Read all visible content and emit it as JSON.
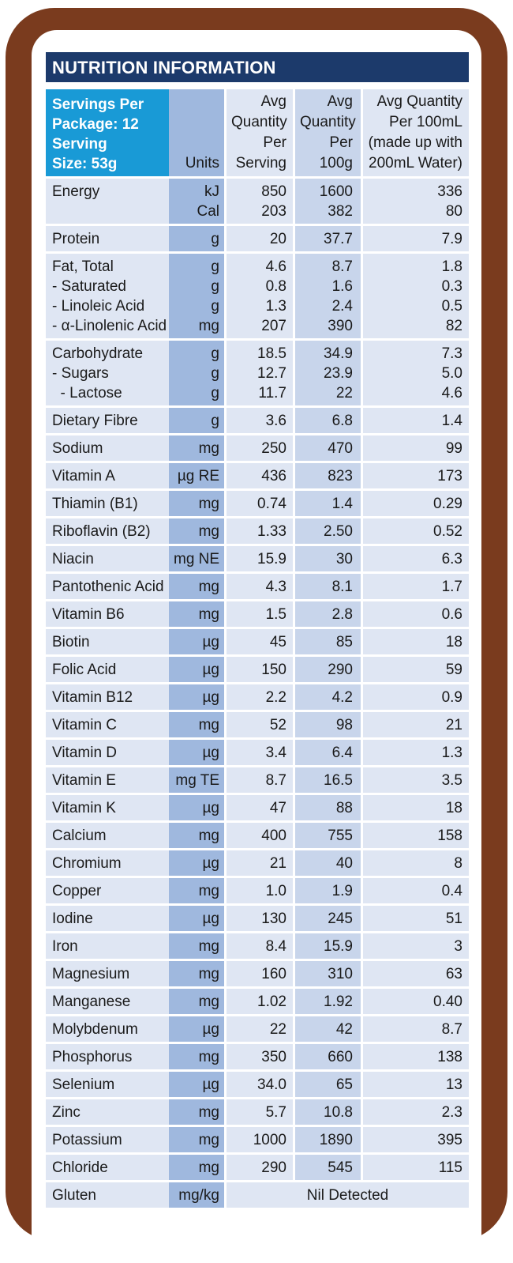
{
  "title": "NUTRITION INFORMATION",
  "header": {
    "servings_line1": "Servings Per",
    "servings_line2": "Package: 12",
    "serving_line1": "Serving",
    "serving_line2": "Size: 53g",
    "units": "Units",
    "per_serving": [
      "Avg",
      "Quantity",
      "Per",
      "Serving"
    ],
    "per_100g": [
      "Avg",
      "Quantity",
      "Per",
      "100g"
    ],
    "per_100ml": [
      "Avg Quantity",
      "Per 100mL",
      "(made up with",
      "200mL Water)"
    ]
  },
  "rows": [
    {
      "names": [
        "Energy",
        ""
      ],
      "units": [
        "kJ",
        "Cal"
      ],
      "ps": [
        "850",
        "203"
      ],
      "p100": [
        "1600",
        "382"
      ],
      "pml": [
        "336",
        "80"
      ]
    },
    {
      "names": [
        "Protein"
      ],
      "units": [
        "g"
      ],
      "ps": [
        "20"
      ],
      "p100": [
        "37.7"
      ],
      "pml": [
        "7.9"
      ]
    },
    {
      "names": [
        "Fat, Total",
        "- Saturated",
        "- Linoleic Acid",
        "- α-Linolenic Acid"
      ],
      "units": [
        "g",
        "g",
        "g",
        "mg"
      ],
      "ps": [
        "4.6",
        "0.8",
        "1.3",
        "207"
      ],
      "p100": [
        "8.7",
        "1.6",
        "2.4",
        "390"
      ],
      "pml": [
        "1.8",
        "0.3",
        "0.5",
        "82"
      ]
    },
    {
      "names": [
        "Carbohydrate",
        "- Sugars",
        "  - Lactose"
      ],
      "units": [
        "g",
        "g",
        "g"
      ],
      "ps": [
        "18.5",
        "12.7",
        "11.7"
      ],
      "p100": [
        "34.9",
        "23.9",
        "22"
      ],
      "pml": [
        "7.3",
        "5.0",
        "4.6"
      ]
    },
    {
      "names": [
        "Dietary Fibre"
      ],
      "units": [
        "g"
      ],
      "ps": [
        "3.6"
      ],
      "p100": [
        "6.8"
      ],
      "pml": [
        "1.4"
      ]
    },
    {
      "names": [
        "Sodium"
      ],
      "units": [
        "mg"
      ],
      "ps": [
        "250"
      ],
      "p100": [
        "470"
      ],
      "pml": [
        "99"
      ]
    },
    {
      "names": [
        "Vitamin A"
      ],
      "units": [
        "µg RE"
      ],
      "ps": [
        "436"
      ],
      "p100": [
        "823"
      ],
      "pml": [
        "173"
      ]
    },
    {
      "names": [
        "Thiamin (B1)"
      ],
      "units": [
        "mg"
      ],
      "ps": [
        "0.74"
      ],
      "p100": [
        "1.4"
      ],
      "pml": [
        "0.29"
      ]
    },
    {
      "names": [
        "Riboflavin (B2)"
      ],
      "units": [
        "mg"
      ],
      "ps": [
        "1.33"
      ],
      "p100": [
        "2.50"
      ],
      "pml": [
        "0.52"
      ]
    },
    {
      "names": [
        "Niacin"
      ],
      "units": [
        "mg NE"
      ],
      "ps": [
        "15.9"
      ],
      "p100": [
        "30"
      ],
      "pml": [
        "6.3"
      ]
    },
    {
      "names": [
        "Pantothenic Acid"
      ],
      "units": [
        "mg"
      ],
      "ps": [
        "4.3"
      ],
      "p100": [
        "8.1"
      ],
      "pml": [
        "1.7"
      ]
    },
    {
      "names": [
        "Vitamin B6"
      ],
      "units": [
        "mg"
      ],
      "ps": [
        "1.5"
      ],
      "p100": [
        "2.8"
      ],
      "pml": [
        "0.6"
      ]
    },
    {
      "names": [
        "Biotin"
      ],
      "units": [
        "µg"
      ],
      "ps": [
        "45"
      ],
      "p100": [
        "85"
      ],
      "pml": [
        "18"
      ]
    },
    {
      "names": [
        "Folic Acid"
      ],
      "units": [
        "µg"
      ],
      "ps": [
        "150"
      ],
      "p100": [
        "290"
      ],
      "pml": [
        "59"
      ]
    },
    {
      "names": [
        "Vitamin B12"
      ],
      "units": [
        "µg"
      ],
      "ps": [
        "2.2"
      ],
      "p100": [
        "4.2"
      ],
      "pml": [
        "0.9"
      ]
    },
    {
      "names": [
        "Vitamin C"
      ],
      "units": [
        "mg"
      ],
      "ps": [
        "52"
      ],
      "p100": [
        "98"
      ],
      "pml": [
        "21"
      ]
    },
    {
      "names": [
        "Vitamin D"
      ],
      "units": [
        "µg"
      ],
      "ps": [
        "3.4"
      ],
      "p100": [
        "6.4"
      ],
      "pml": [
        "1.3"
      ]
    },
    {
      "names": [
        "Vitamin E"
      ],
      "units": [
        "mg TE"
      ],
      "ps": [
        "8.7"
      ],
      "p100": [
        "16.5"
      ],
      "pml": [
        "3.5"
      ]
    },
    {
      "names": [
        "Vitamin K"
      ],
      "units": [
        "µg"
      ],
      "ps": [
        "47"
      ],
      "p100": [
        "88"
      ],
      "pml": [
        "18"
      ]
    },
    {
      "names": [
        "Calcium"
      ],
      "units": [
        "mg"
      ],
      "ps": [
        "400"
      ],
      "p100": [
        "755"
      ],
      "pml": [
        "158"
      ]
    },
    {
      "names": [
        "Chromium"
      ],
      "units": [
        "µg"
      ],
      "ps": [
        "21"
      ],
      "p100": [
        "40"
      ],
      "pml": [
        "8"
      ]
    },
    {
      "names": [
        "Copper"
      ],
      "units": [
        "mg"
      ],
      "ps": [
        "1.0"
      ],
      "p100": [
        "1.9"
      ],
      "pml": [
        "0.4"
      ]
    },
    {
      "names": [
        "Iodine"
      ],
      "units": [
        "µg"
      ],
      "ps": [
        "130"
      ],
      "p100": [
        "245"
      ],
      "pml": [
        "51"
      ]
    },
    {
      "names": [
        "Iron"
      ],
      "units": [
        "mg"
      ],
      "ps": [
        "8.4"
      ],
      "p100": [
        "15.9"
      ],
      "pml": [
        "3"
      ]
    },
    {
      "names": [
        "Magnesium"
      ],
      "units": [
        "mg"
      ],
      "ps": [
        "160"
      ],
      "p100": [
        "310"
      ],
      "pml": [
        "63"
      ]
    },
    {
      "names": [
        "Manganese"
      ],
      "units": [
        "mg"
      ],
      "ps": [
        "1.02"
      ],
      "p100": [
        "1.92"
      ],
      "pml": [
        "0.40"
      ]
    },
    {
      "names": [
        "Molybdenum"
      ],
      "units": [
        "µg"
      ],
      "ps": [
        "22"
      ],
      "p100": [
        "42"
      ],
      "pml": [
        "8.7"
      ]
    },
    {
      "names": [
        "Phosphorus"
      ],
      "units": [
        "mg"
      ],
      "ps": [
        "350"
      ],
      "p100": [
        "660"
      ],
      "pml": [
        "138"
      ]
    },
    {
      "names": [
        "Selenium"
      ],
      "units": [
        "µg"
      ],
      "ps": [
        "34.0"
      ],
      "p100": [
        "65"
      ],
      "pml": [
        "13"
      ]
    },
    {
      "names": [
        "Zinc"
      ],
      "units": [
        "mg"
      ],
      "ps": [
        "5.7"
      ],
      "p100": [
        "10.8"
      ],
      "pml": [
        "2.3"
      ]
    },
    {
      "names": [
        "Potassium"
      ],
      "units": [
        "mg"
      ],
      "ps": [
        "1000"
      ],
      "p100": [
        "1890"
      ],
      "pml": [
        "395"
      ]
    },
    {
      "names": [
        "Chloride"
      ],
      "units": [
        "mg"
      ],
      "ps": [
        "290"
      ],
      "p100": [
        "545"
      ],
      "pml": [
        "115"
      ]
    }
  ],
  "gluten": {
    "name": "Gluten",
    "unit": "mg/kg",
    "value": "Nil Detected"
  },
  "colors": {
    "frame": "#7a3b1e",
    "title_bar": "#1c3a6b",
    "header_cell": "#199ad6",
    "units_column": "#9fb8de",
    "light_cell": "#dfe6f3",
    "mid_cell": "#c8d5eb"
  }
}
